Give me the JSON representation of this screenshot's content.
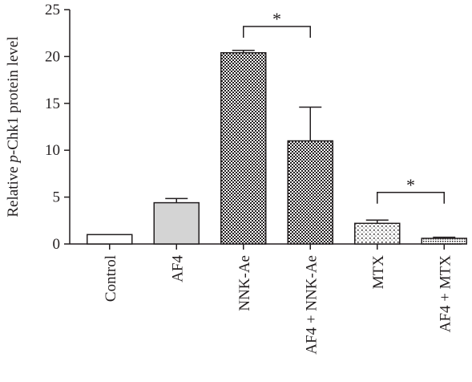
{
  "chart_data": {
    "type": "bar",
    "ylabel_parts": [
      "Relative ",
      "p",
      "-Chk1 protein level"
    ],
    "ylim": [
      0,
      25
    ],
    "yticks": [
      0,
      5,
      10,
      15,
      20,
      25
    ],
    "categories": [
      "Control",
      "AF4",
      "NNK-Ae",
      "AF4 + NNK-Ae",
      "MTX",
      "AF4 + MTX"
    ],
    "values": [
      1.0,
      4.4,
      20.4,
      11.0,
      2.2,
      0.6
    ],
    "errors": [
      0,
      0.45,
      0.25,
      3.6,
      0.35,
      0.12
    ],
    "fills": [
      "white",
      "#d4d4d4",
      "checker",
      "checker",
      "dots",
      "dots-dense"
    ],
    "significance": [
      {
        "from": 2,
        "to": 3,
        "label": "*",
        "y": 23.2
      },
      {
        "from": 4,
        "to": 5,
        "label": "*",
        "y": 5.5
      }
    ],
    "grid": false
  }
}
